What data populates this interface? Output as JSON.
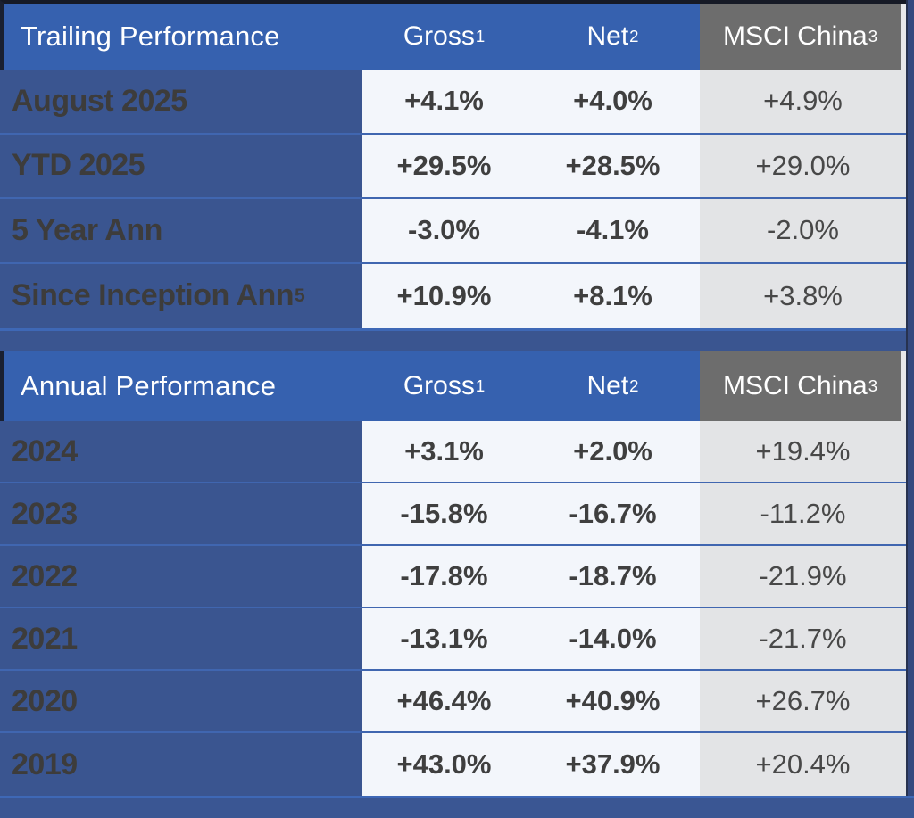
{
  "chart_data": [
    {
      "type": "table",
      "title": "Trailing Performance",
      "columns": [
        {
          "label": "Gross",
          "sup": "1"
        },
        {
          "label": "Net",
          "sup": "2"
        },
        {
          "label": "MSCI China",
          "sup": "3"
        }
      ],
      "rows": [
        {
          "label": "August 2025",
          "sup": "",
          "values": [
            "+4.1%",
            "+4.0%",
            "+4.9%"
          ]
        },
        {
          "label": "YTD 2025",
          "sup": "",
          "values": [
            "+29.5%",
            "+28.5%",
            "+29.0%"
          ]
        },
        {
          "label": "5 Year Ann",
          "sup": "",
          "values": [
            "-3.0%",
            "-4.1%",
            "-2.0%"
          ]
        },
        {
          "label": "Since Inception Ann",
          "sup": "5",
          "values": [
            "+10.9%",
            "+8.1%",
            "+3.8%"
          ]
        }
      ]
    },
    {
      "type": "table",
      "title": "Annual Performance",
      "columns": [
        {
          "label": "Gross",
          "sup": "1"
        },
        {
          "label": "Net",
          "sup": "2"
        },
        {
          "label": "MSCI China",
          "sup": "3"
        }
      ],
      "rows": [
        {
          "label": "2024",
          "sup": "",
          "values": [
            "+3.1%",
            "+2.0%",
            "+19.4%"
          ]
        },
        {
          "label": "2023",
          "sup": "",
          "values": [
            "-15.8%",
            "-16.7%",
            "-11.2%"
          ]
        },
        {
          "label": "2022",
          "sup": "",
          "values": [
            "-17.8%",
            "-18.7%",
            "-21.9%"
          ]
        },
        {
          "label": "2021",
          "sup": "",
          "values": [
            "-13.1%",
            "-14.0%",
            "-21.7%"
          ]
        },
        {
          "label": "2020",
          "sup": "",
          "values": [
            "+46.4%",
            "+40.9%",
            "+26.7%"
          ]
        },
        {
          "label": "2019",
          "sup": "",
          "values": [
            "+43.0%",
            "+37.9%",
            "+20.4%"
          ]
        }
      ]
    }
  ],
  "colors": {
    "header_blue": "#3661AF",
    "header_gray": "#6D6D6D",
    "label_column_blue": "#3A5590",
    "separator_band_blue": "#3A5590",
    "footer_band_blue": "#3A5693",
    "data_cell_bg": "#F3F6FB",
    "msci_cell_bg": "#E3E4E6",
    "row_line_blue": "#4066B0",
    "edge_dark_navy": "#1A2030",
    "right_strip_blue": "#35497E",
    "header_text": "#FFFFFF",
    "label_text": "#3D3C3B",
    "value_text": "#3F3F3F"
  }
}
